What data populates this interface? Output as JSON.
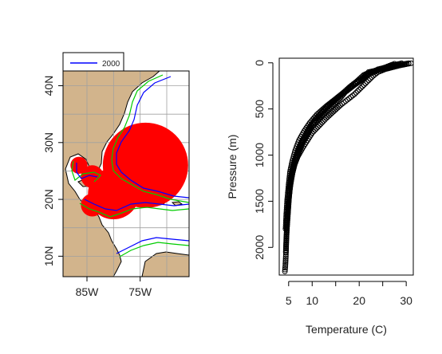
{
  "colors": {
    "land": "#d2b48c",
    "points": "#ff0000",
    "contour_1000": "#00cc00",
    "contour_2000": "#0000ff",
    "grid": "#a0a0a0",
    "axis": "#000000"
  },
  "chart_data": [
    {
      "type": "map",
      "legend": {
        "placement": "top-left",
        "entries": [
          {
            "label": "2000",
            "color": "#0000ff"
          }
        ]
      },
      "x_ticks": [
        {
          "value": -85,
          "label": "85W"
        },
        {
          "value": -75,
          "label": "75W"
        }
      ],
      "y_ticks": [
        {
          "value": 10,
          "label": "10N"
        },
        {
          "value": 20,
          "label": "20N"
        },
        {
          "value": 30,
          "label": "30N"
        },
        {
          "value": 40,
          "label": "40N"
        }
      ],
      "xlim": [
        -89.5,
        -65.8
      ],
      "ylim": [
        6.4,
        42.6
      ],
      "grid": true,
      "grid_lon": [
        -85,
        -80,
        -75,
        -70
      ],
      "grid_lat": [
        10,
        15,
        20,
        25,
        30,
        35,
        40
      ],
      "station_regions": [
        {
          "lon": -74.0,
          "lat": 26.0,
          "r_deg": 7.5
        },
        {
          "lon": -80.0,
          "lat": 21.0,
          "r_deg": 4.5
        },
        {
          "lon": -84.0,
          "lat": 24.0,
          "r_deg": 2.0
        },
        {
          "lon": -84.0,
          "lat": 19.0,
          "r_deg": 2.0
        },
        {
          "lon": -86.5,
          "lat": 26.0,
          "r_deg": 1.5
        }
      ]
    },
    {
      "type": "scatter",
      "xlabel": "Temperature (C)",
      "ylabel": "Pressure (m)",
      "xlim": [
        3,
        31.5
      ],
      "ylim": [
        2300,
        -50
      ],
      "y_inverted": true,
      "x_ticks": [
        5,
        10,
        15,
        20,
        25,
        30
      ],
      "x_tick_labels": [
        "5",
        "10",
        "",
        "20",
        "",
        "30"
      ],
      "y_ticks": [
        0,
        500,
        1000,
        1500,
        2000
      ],
      "y_tick_labels": [
        "0",
        "500",
        "1000",
        "1500",
        "2000"
      ],
      "marker": "open-circle",
      "profiles": [
        {
          "temperature": [
            30.5,
            29.0,
            27.5,
            26.0,
            24.0,
            22.0,
            21.0,
            20.0,
            18.5,
            17.0,
            16.0,
            14.5,
            13.0,
            11.5,
            10.0,
            9.0,
            8.0,
            7.3,
            6.5,
            6.0,
            5.6,
            5.3,
            5.0,
            4.8,
            4.6,
            4.5,
            4.4,
            4.3,
            4.2
          ],
          "pressure": [
            5,
            20,
            40,
            60,
            80,
            100,
            150,
            200,
            260,
            320,
            380,
            450,
            520,
            600,
            690,
            780,
            870,
            950,
            1050,
            1150,
            1250,
            1350,
            1500,
            1650,
            1800,
            1950,
            2100,
            2200,
            2260
          ]
        },
        {
          "temperature": [
            29.0,
            27.0,
            25.0,
            23.0,
            21.0,
            19.5,
            18.0,
            16.5,
            15.0,
            13.5,
            12.0,
            10.5,
            9.5,
            8.5,
            7.5,
            6.8,
            6.2,
            5.8,
            5.4,
            5.1,
            4.9,
            4.7,
            4.5,
            4.4
          ],
          "pressure": [
            5,
            30,
            60,
            90,
            130,
            200,
            260,
            330,
            400,
            470,
            550,
            640,
            720,
            810,
            900,
            1000,
            1100,
            1200,
            1300,
            1450,
            1600,
            1750,
            1900,
            2050
          ]
        },
        {
          "temperature": [
            31.0,
            30.0,
            28.5,
            27.0,
            25.5,
            24.0,
            23.0,
            22.0,
            21.0,
            20.0,
            19.0,
            17.5,
            16.0,
            14.5,
            13.0,
            11.5,
            10.0,
            9.0,
            8.0,
            7.0,
            6.3,
            5.8,
            5.4,
            5.0,
            4.8
          ],
          "pressure": [
            5,
            15,
            30,
            50,
            70,
            100,
            140,
            190,
            240,
            290,
            340,
            400,
            460,
            530,
            600,
            680,
            760,
            840,
            920,
            1010,
            1100,
            1200,
            1320,
            1480,
            1650
          ]
        },
        {
          "temperature": [
            27.5,
            26.0,
            24.5,
            23.0,
            21.5,
            20.0,
            18.5,
            17.0,
            15.5,
            14.0,
            12.5,
            11.0,
            9.8,
            8.8,
            7.8,
            7.0,
            6.4,
            5.9,
            5.5,
            5.2,
            5.0,
            4.8,
            4.6
          ],
          "pressure": [
            10,
            40,
            70,
            100,
            140,
            190,
            250,
            310,
            370,
            440,
            510,
            590,
            670,
            760,
            850,
            940,
            1030,
            1130,
            1230,
            1350,
            1480,
            1620,
            1760
          ]
        },
        {
          "temperature": [
            30.0,
            28.0,
            26.0,
            24.0,
            22.5,
            21.0,
            19.0,
            17.0,
            15.0,
            13.0,
            11.0,
            9.5,
            8.3,
            7.2,
            6.4,
            5.8,
            5.3,
            5.0,
            4.7,
            4.5,
            4.35
          ],
          "pressure": [
            10,
            25,
            45,
            70,
            110,
            170,
            240,
            310,
            390,
            470,
            560,
            650,
            740,
            840,
            950,
            1060,
            1180,
            1320,
            1480,
            1640,
            1800
          ]
        }
      ]
    }
  ]
}
